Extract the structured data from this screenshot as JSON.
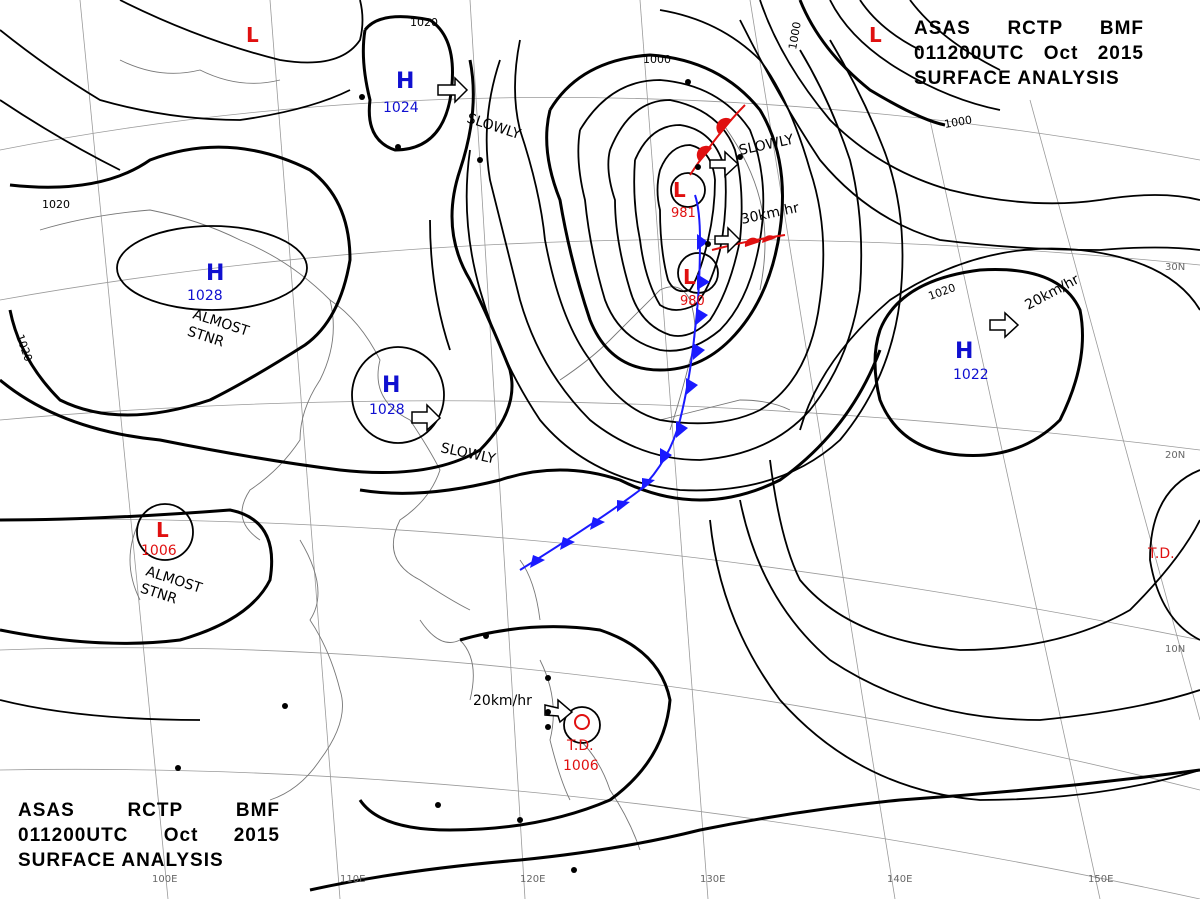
{
  "header": {
    "line1": [
      "ASAS",
      "RCTP",
      "BMF"
    ],
    "line2": [
      "011200UTC",
      "Oct",
      "2015"
    ],
    "line3": "SURFACE ANALYSIS"
  },
  "colors": {
    "high": "#1010d0",
    "low": "#e01010",
    "isobar": "#000000",
    "coast": "#777777",
    "grid": "#9a9a9a"
  },
  "pressure_systems": [
    {
      "type": "H",
      "value": "1024"
    },
    {
      "type": "H",
      "value": "1028"
    },
    {
      "type": "H",
      "value": "1028"
    },
    {
      "type": "H",
      "value": "1022"
    },
    {
      "type": "L",
      "value": "981"
    },
    {
      "type": "L",
      "value": "980"
    },
    {
      "type": "L",
      "value": "1006"
    },
    {
      "type": "L",
      "value": ""
    },
    {
      "type": "L",
      "value": ""
    },
    {
      "type": "T.D.",
      "value": "1006"
    }
  ],
  "motion_labels": [
    "SLOWLY",
    "SLOWLY",
    "SLOWLY",
    "30km/hr",
    "20km/hr",
    "20km/hr",
    "ALMOST STNR",
    "ALMOST STNR"
  ],
  "isobar_labels": [
    "1020",
    "1000",
    "1000",
    "1000",
    "1020",
    "1020",
    "1020"
  ],
  "td_label": "T.D.",
  "lon_labels": [
    "100E",
    "110E",
    "120E",
    "130E",
    "140E",
    "150E"
  ],
  "lat_labels": [
    "30N",
    "20N",
    "10N"
  ]
}
